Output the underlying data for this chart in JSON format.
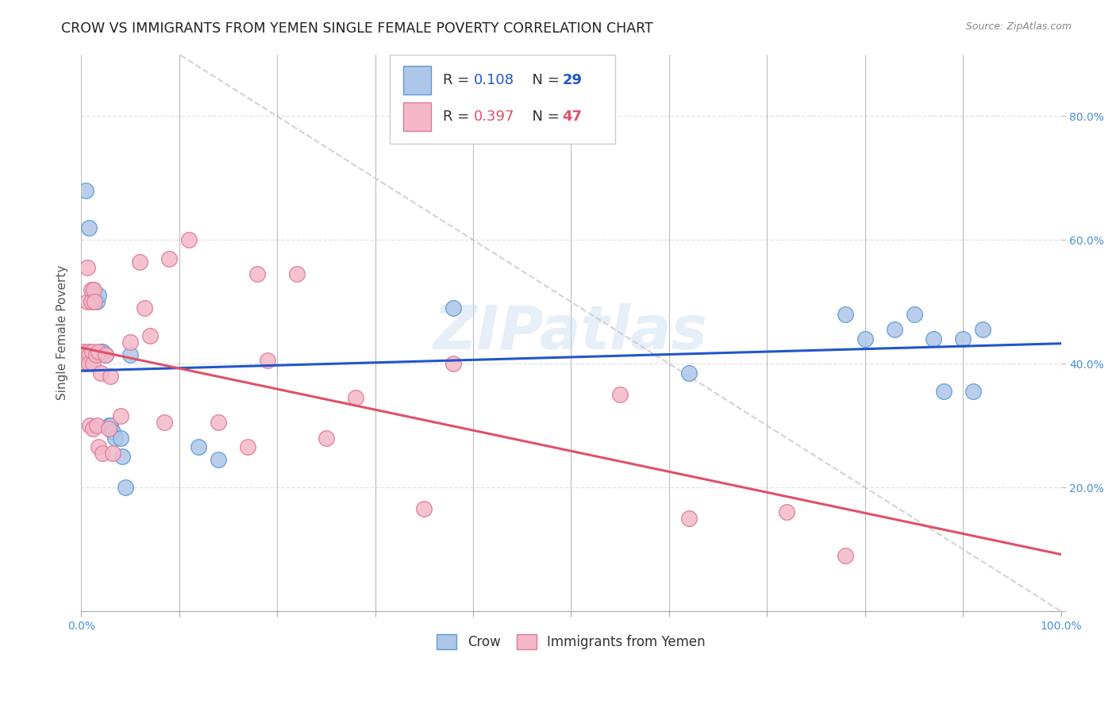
{
  "title": "CROW VS IMMIGRANTS FROM YEMEN SINGLE FEMALE POVERTY CORRELATION CHART",
  "source": "Source: ZipAtlas.com",
  "ylabel": "Single Female Poverty",
  "watermark": "ZIPatlas",
  "crow_R": 0.108,
  "crow_N": 29,
  "yemen_R": 0.397,
  "yemen_N": 47,
  "xlim": [
    0.0,
    1.0
  ],
  "ylim": [
    0.0,
    0.9
  ],
  "xtick_positions": [
    0.0,
    0.1,
    0.2,
    0.3,
    0.4,
    0.5,
    0.6,
    0.7,
    0.8,
    0.9,
    1.0
  ],
  "xtick_labels_shown": {
    "0.0": "0.0%",
    "1.0": "100.0%"
  },
  "ytick_positions": [
    0.0,
    0.2,
    0.4,
    0.6,
    0.8
  ],
  "ytick_labels": [
    "",
    "20.0%",
    "40.0%",
    "60.0%",
    "80.0%"
  ],
  "crow_color": "#aec6e8",
  "crow_edge_color": "#5b9bd5",
  "yemen_color": "#f4b8c8",
  "yemen_edge_color": "#e07898",
  "trend_crow_color": "#2255cc",
  "trend_yemen_color": "#e0506a",
  "trend_diag_color": "#c8c8c8",
  "bg_color": "#ffffff",
  "grid_color": "#e0e0e8",
  "tick_color": "#4a90d9",
  "title_color": "#222222",
  "label_color": "#555555",
  "crow_x": [
    0.005,
    0.008,
    0.012,
    0.016,
    0.018,
    0.02,
    0.022,
    0.025,
    0.028,
    0.03,
    0.032,
    0.035,
    0.04,
    0.042,
    0.045,
    0.05,
    0.12,
    0.14,
    0.38,
    0.62,
    0.78,
    0.8,
    0.83,
    0.85,
    0.87,
    0.88,
    0.9,
    0.91,
    0.92
  ],
  "crow_y": [
    0.68,
    0.62,
    0.52,
    0.5,
    0.51,
    0.42,
    0.42,
    0.415,
    0.3,
    0.3,
    0.29,
    0.28,
    0.28,
    0.25,
    0.2,
    0.415,
    0.265,
    0.245,
    0.49,
    0.385,
    0.48,
    0.44,
    0.455,
    0.48,
    0.44,
    0.355,
    0.44,
    0.355,
    0.455
  ],
  "yemen_x": [
    0.002,
    0.003,
    0.004,
    0.006,
    0.006,
    0.007,
    0.008,
    0.008,
    0.009,
    0.01,
    0.01,
    0.011,
    0.012,
    0.012,
    0.013,
    0.014,
    0.015,
    0.016,
    0.018,
    0.018,
    0.02,
    0.022,
    0.025,
    0.028,
    0.03,
    0.032,
    0.04,
    0.05,
    0.06,
    0.065,
    0.07,
    0.085,
    0.09,
    0.11,
    0.14,
    0.17,
    0.18,
    0.19,
    0.22,
    0.25,
    0.28,
    0.35,
    0.38,
    0.55,
    0.62,
    0.72,
    0.78
  ],
  "yemen_y": [
    0.42,
    0.415,
    0.4,
    0.555,
    0.5,
    0.42,
    0.415,
    0.4,
    0.3,
    0.52,
    0.5,
    0.42,
    0.4,
    0.295,
    0.52,
    0.5,
    0.415,
    0.3,
    0.42,
    0.265,
    0.385,
    0.255,
    0.415,
    0.295,
    0.38,
    0.255,
    0.315,
    0.435,
    0.565,
    0.49,
    0.445,
    0.305,
    0.57,
    0.6,
    0.305,
    0.265,
    0.545,
    0.405,
    0.545,
    0.28,
    0.345,
    0.165,
    0.4,
    0.35,
    0.15,
    0.16,
    0.09
  ]
}
